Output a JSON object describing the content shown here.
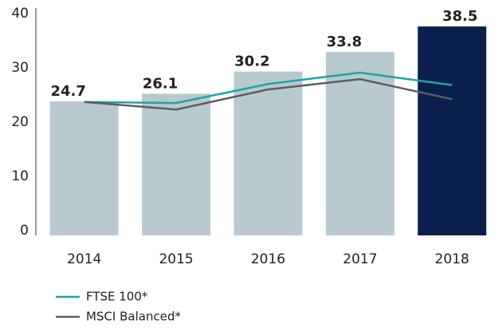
{
  "chart_data": {
    "type": "bar",
    "categories": [
      "2014",
      "2015",
      "2016",
      "2017",
      "2018"
    ],
    "values": [
      24.7,
      26.1,
      30.2,
      33.8,
      38.5
    ],
    "colors": [
      "#b8c9cf",
      "#b8c9cf",
      "#b8c9cf",
      "#b8c9cf",
      "#0b1f4f"
    ],
    "series": [
      {
        "name": "FTSE 100*",
        "color": "#1aa6a6",
        "values": [
          24.6,
          24.4,
          27.9,
          30.0,
          27.7
        ]
      },
      {
        "name": "MSCI Balanced*",
        "color": "#5a5e63",
        "values": [
          24.6,
          23.2,
          26.9,
          28.8,
          25.1
        ]
      }
    ],
    "ylim": [
      0,
      40
    ],
    "yticks": [
      0,
      10,
      20,
      30,
      40
    ],
    "grid": false
  }
}
